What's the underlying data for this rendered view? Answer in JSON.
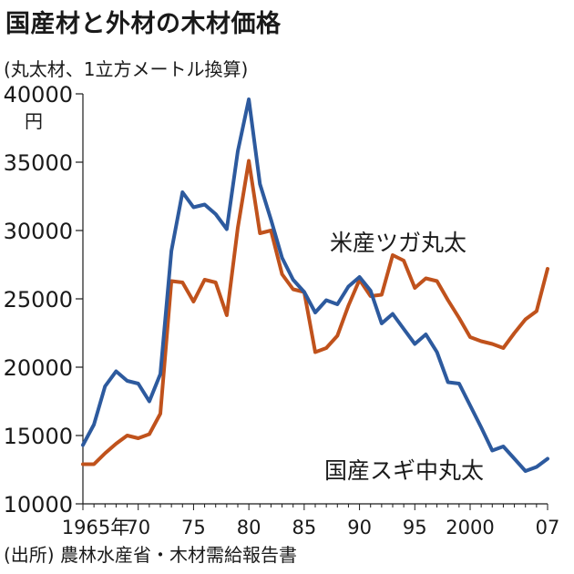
{
  "title": "国産材と外材の木材価格",
  "subtitle": "(丸太材、1立方メートル換算)",
  "source": "(出所) 農林水産省・木材需給報告書",
  "chart_data": {
    "type": "line",
    "title": "国産材と外材の木材価格",
    "subtitle": "(丸太材、1立方メートル換算)",
    "y_unit": "円",
    "ylim": [
      10000,
      40000
    ],
    "xlim": [
      1965,
      2007
    ],
    "y_ticks": [
      10000,
      15000,
      20000,
      25000,
      30000,
      35000,
      40000
    ],
    "y_tick_labels": [
      "10000",
      "15000",
      "20000",
      "25000",
      "30000",
      "35000",
      "40000"
    ],
    "x_ticks": [
      1965,
      1970,
      1975,
      1980,
      1985,
      1990,
      1995,
      2000,
      2007
    ],
    "x_tick_labels": [
      "1965年",
      "70",
      "75",
      "80",
      "85",
      "90",
      "95",
      "2000",
      "07"
    ],
    "grid": false,
    "series": [
      {
        "name": "米産ツガ丸太",
        "color": "#c0521c",
        "x": [
          1965,
          1966,
          1967,
          1968,
          1969,
          1970,
          1971,
          1972,
          1973,
          1974,
          1975,
          1976,
          1977,
          1978,
          1979,
          1980,
          1981,
          1982,
          1983,
          1984,
          1985,
          1986,
          1987,
          1988,
          1989,
          1990,
          1991,
          1992,
          1993,
          1994,
          1995,
          1996,
          1997,
          1998,
          1999,
          2000,
          2001,
          2002,
          2003,
          2004,
          2005,
          2006,
          2007
        ],
        "values": [
          12900,
          12900,
          13700,
          14400,
          15000,
          14800,
          15100,
          16600,
          26300,
          26200,
          24800,
          26400,
          26200,
          23800,
          30200,
          35100,
          29800,
          30000,
          26800,
          25700,
          25500,
          21100,
          21400,
          22300,
          24500,
          26400,
          25200,
          25300,
          28200,
          27800,
          25800,
          26500,
          26300,
          24900,
          23600,
          22200,
          21900,
          21700,
          21400,
          22500,
          23500,
          24100,
          27200
        ]
      },
      {
        "name": "国産スギ中丸太",
        "color": "#2d5a9e",
        "x": [
          1965,
          1966,
          1967,
          1968,
          1969,
          1970,
          1971,
          1972,
          1973,
          1974,
          1975,
          1976,
          1977,
          1978,
          1979,
          1980,
          1981,
          1982,
          1983,
          1984,
          1985,
          1986,
          1987,
          1988,
          1989,
          1990,
          1991,
          1992,
          1993,
          1994,
          1995,
          1996,
          1997,
          1998,
          1999,
          2000,
          2001,
          2002,
          2003,
          2004,
          2005,
          2006,
          2007
        ],
        "values": [
          14300,
          15800,
          18600,
          19700,
          19000,
          18800,
          17500,
          19500,
          28500,
          32800,
          31700,
          31900,
          31200,
          30100,
          35800,
          39600,
          33400,
          30800,
          28000,
          26400,
          25500,
          24000,
          24900,
          24600,
          25900,
          26600,
          25600,
          23200,
          23900,
          22800,
          21700,
          22400,
          21100,
          18900,
          18800,
          17200,
          15600,
          13900,
          14200,
          13300,
          12400,
          12700,
          13300
        ]
      }
    ]
  }
}
